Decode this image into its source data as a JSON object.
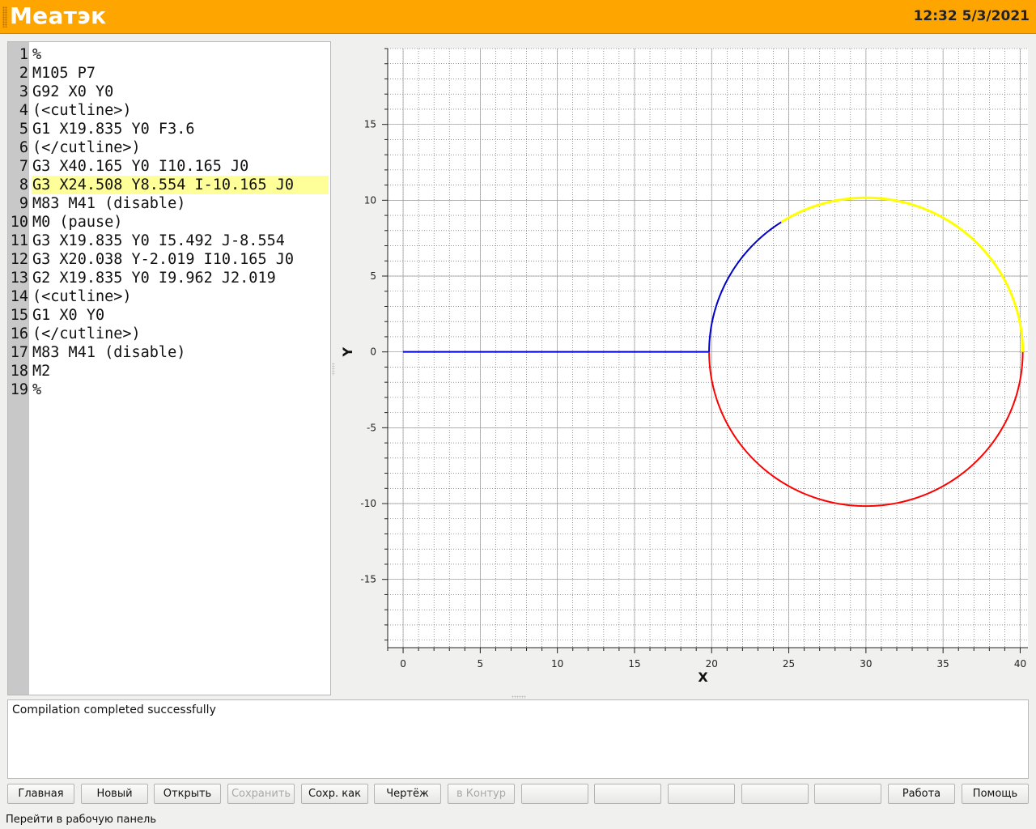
{
  "titlebar": {
    "app_title": "Меатэк",
    "clock": "12:32 5/3/2021",
    "color": "#ffa500"
  },
  "editor": {
    "highlighted_line": 8,
    "highlight_color": "#ffff99",
    "lines": [
      {
        "num": "1",
        "text": "%"
      },
      {
        "num": "2",
        "text": "M105 P7"
      },
      {
        "num": "3",
        "text": "G92 X0 Y0"
      },
      {
        "num": "4",
        "text": "(<cutline>)"
      },
      {
        "num": "5",
        "text": "G1 X19.835 Y0 F3.6"
      },
      {
        "num": "6",
        "text": "(</cutline>)"
      },
      {
        "num": "7",
        "text": "G3 X40.165 Y0 I10.165 J0"
      },
      {
        "num": "8",
        "text": "G3 X24.508 Y8.554 I-10.165 J0"
      },
      {
        "num": "9",
        "text": "M83 M41 (disable)"
      },
      {
        "num": "10",
        "text": "M0 (pause)"
      },
      {
        "num": "11",
        "text": "G3 X19.835 Y0 I5.492 J-8.554"
      },
      {
        "num": "12",
        "text": "G3 X20.038 Y-2.019 I10.165 J0"
      },
      {
        "num": "13",
        "text": "G2 X19.835 Y0 I9.962 J2.019"
      },
      {
        "num": "14",
        "text": "(<cutline>)"
      },
      {
        "num": "15",
        "text": "G1 X0 Y0"
      },
      {
        "num": "16",
        "text": "(</cutline>)"
      },
      {
        "num": "17",
        "text": "M83 M41 (disable)"
      },
      {
        "num": "18",
        "text": "M2"
      },
      {
        "num": "19",
        "text": "%"
      }
    ]
  },
  "chart_data": {
    "type": "line",
    "xlabel": "X",
    "ylabel": "Y",
    "xlim": [
      -1,
      40.5
    ],
    "ylim": [
      -19.5,
      20
    ],
    "x_ticks": [
      0,
      5,
      10,
      15,
      20,
      25,
      30,
      35,
      40
    ],
    "y_ticks": [
      -15,
      -10,
      -5,
      0,
      5,
      10,
      15
    ],
    "grid": true,
    "minor_grid_step": 1,
    "series": [
      {
        "color": "#0000cc",
        "kind": "line",
        "from": [
          0,
          0
        ],
        "to": [
          19.835,
          0
        ]
      },
      {
        "color": "#ff0000",
        "kind": "arc",
        "center": [
          30,
          0
        ],
        "radius": 10.165,
        "start": [
          19.835,
          0
        ],
        "end": [
          40.165,
          0
        ],
        "direction": "ccw",
        "note_g": "G3"
      },
      {
        "color": "#ffff00",
        "kind": "arc",
        "center": [
          30,
          0
        ],
        "radius": 10.165,
        "start": [
          40.165,
          0
        ],
        "end": [
          24.508,
          8.554
        ],
        "direction": "ccw"
      },
      {
        "color": "#0000cc",
        "kind": "arc",
        "center": [
          30,
          0
        ],
        "radius": 10.165,
        "start": [
          24.508,
          8.554
        ],
        "end": [
          19.835,
          0
        ],
        "direction": "ccw"
      }
    ]
  },
  "messages": {
    "text": "Compilation completed successfully"
  },
  "buttons": [
    {
      "label": "Главная",
      "enabled": true
    },
    {
      "label": "Новый",
      "enabled": true
    },
    {
      "label": "Открыть",
      "enabled": true
    },
    {
      "label": "Сохранить",
      "enabled": false
    },
    {
      "label": "Сохр. как",
      "enabled": true
    },
    {
      "label": "Чертёж",
      "enabled": true
    },
    {
      "label": "в Контур",
      "enabled": false
    },
    {
      "label": "",
      "enabled": false
    },
    {
      "label": "",
      "enabled": false
    },
    {
      "label": "",
      "enabled": false
    },
    {
      "label": "",
      "enabled": false
    },
    {
      "label": "",
      "enabled": false
    },
    {
      "label": "Работа",
      "enabled": true
    },
    {
      "label": "Помощь",
      "enabled": true
    }
  ],
  "status": {
    "text": "Перейти в рабочую панель"
  }
}
